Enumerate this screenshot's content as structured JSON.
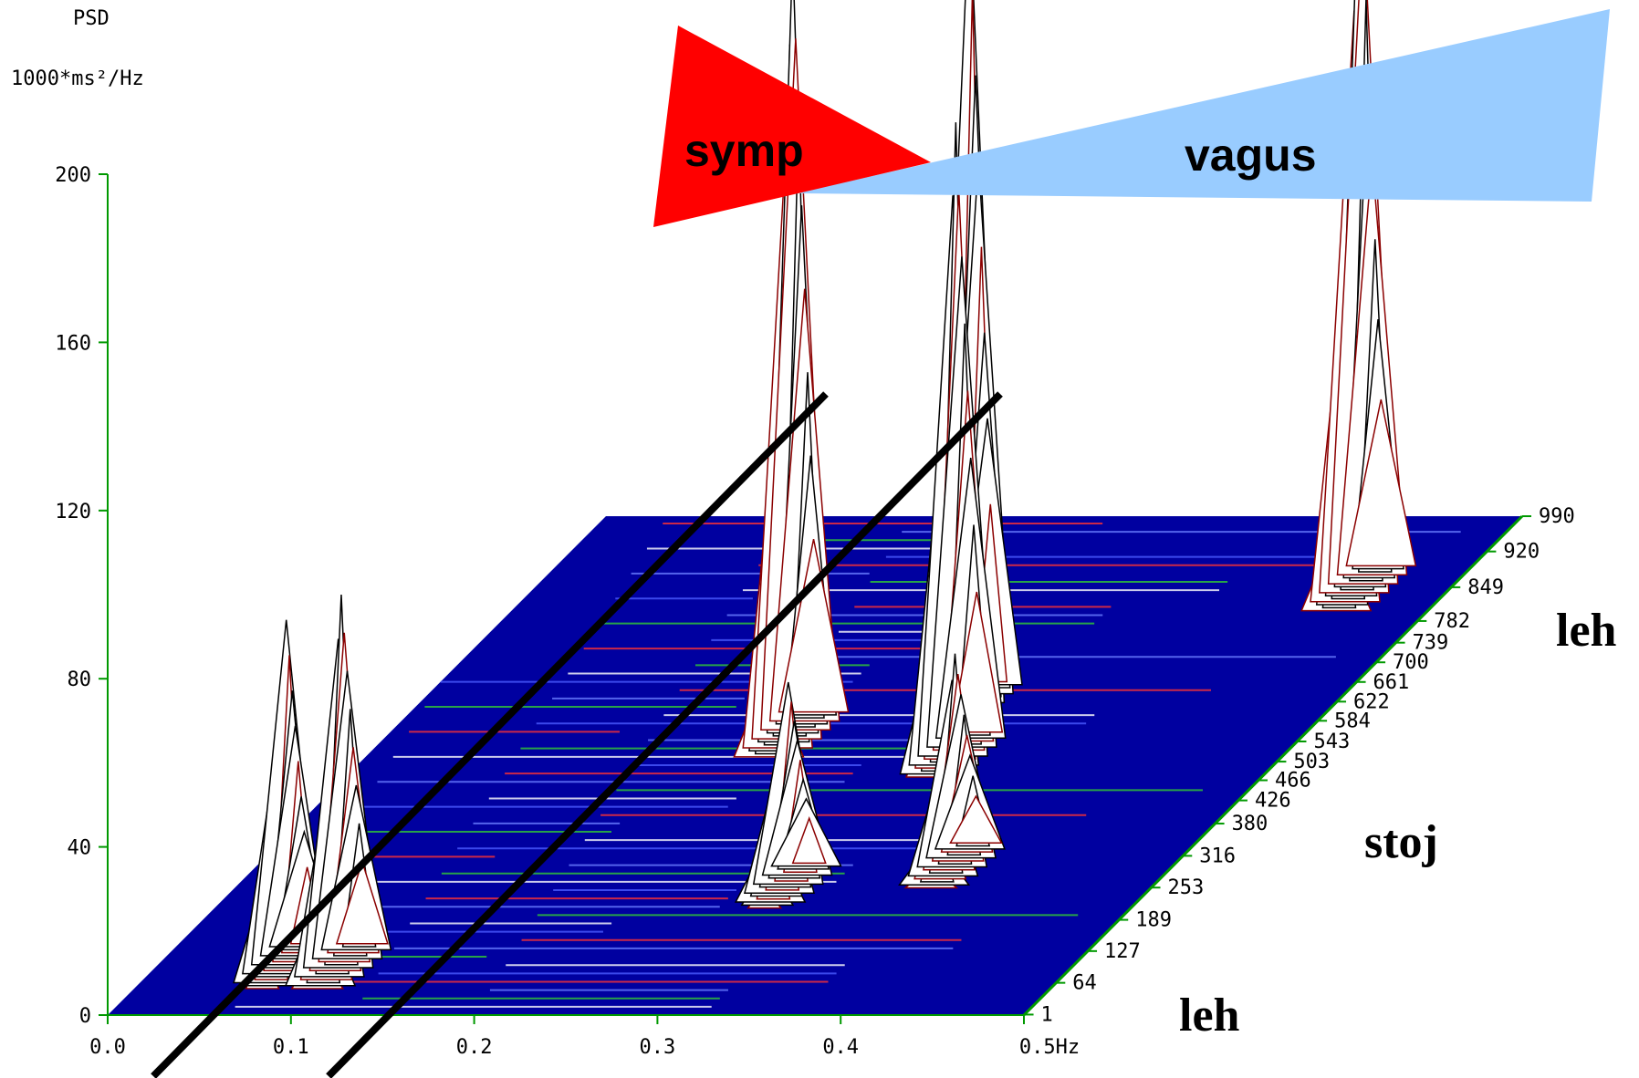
{
  "chart_data": {
    "type": "area",
    "subtype": "3d-waterfall-spectrogram",
    "ylabel_line1": "PSD",
    "ylabel_line2": "1000*ms²/Hz",
    "xlabel": "",
    "x_unit": "Hz",
    "x_ticks": [
      "0.0",
      "0.1",
      "0.2",
      "0.3",
      "0.4",
      "0.5Hz"
    ],
    "y_ticks": [
      "0",
      "40",
      "80",
      "120",
      "160",
      "200"
    ],
    "ylim": [
      0,
      200
    ],
    "xlim": [
      0,
      0.5
    ],
    "z_ticks": [
      "1",
      "64",
      "127",
      "189",
      "253",
      "316",
      "380",
      "426",
      "466",
      "503",
      "543",
      "584",
      "622",
      "661",
      "700",
      "739",
      "782",
      "849",
      "920",
      "990"
    ],
    "segments": [
      {
        "label": "leh",
        "z_range": [
          1,
          466
        ]
      },
      {
        "label": "stoj",
        "z_range": [
          466,
          700
        ]
      },
      {
        "label": "leh",
        "z_range": [
          700,
          990
        ]
      }
    ],
    "bands": {
      "LF_center_hz": 0.1,
      "HF_center_hz": 0.25
    },
    "peaks": [
      {
        "x": 0.07,
        "z": 100,
        "psd": 82
      },
      {
        "x": 0.1,
        "z": 100,
        "psd": 88
      },
      {
        "x": 0.22,
        "z": 560,
        "psd": 185
      },
      {
        "x": 0.3,
        "z": 620,
        "psd": 190
      },
      {
        "x": 0.32,
        "z": 520,
        "psd": 150
      },
      {
        "x": 0.45,
        "z": 850,
        "psd": 178
      },
      {
        "x": 0.3,
        "z": 260,
        "psd": 48
      },
      {
        "x": 0.38,
        "z": 300,
        "psd": 50
      }
    ],
    "annotations": {
      "symp_label": "symp",
      "vagus_label": "vagus"
    },
    "colors": {
      "axis": "#009900",
      "base": "#0000a0",
      "red_triangle": "#ff0000",
      "blue_triangle": "#99ccff",
      "lines": "#000000"
    }
  }
}
